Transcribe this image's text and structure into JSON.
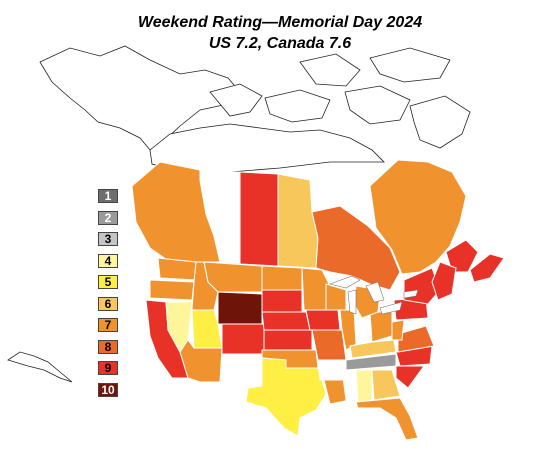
{
  "title": "Weekend Rating—Memorial Day 2024",
  "subtitle": "US 7.2, Canada 7.6",
  "legend": [
    {
      "label": "1",
      "color": "#6e6e6e"
    },
    {
      "label": "2",
      "color": "#9a9a9a"
    },
    {
      "label": "3",
      "color": "#c4c4c4"
    },
    {
      "label": "4",
      "color": "#fff59a"
    },
    {
      "label": "5",
      "color": "#ffee44"
    },
    {
      "label": "6",
      "color": "#f8c75c"
    },
    {
      "label": "7",
      "color": "#f0932e"
    },
    {
      "label": "8",
      "color": "#ea6a2a"
    },
    {
      "label": "9",
      "color": "#e83228"
    },
    {
      "label": "10",
      "color": "#6e1408"
    }
  ],
  "regions": [
    {
      "name": "British Columbia",
      "rating": 7
    },
    {
      "name": "Alberta",
      "rating": 0
    },
    {
      "name": "Saskatchewan",
      "rating": 9
    },
    {
      "name": "Manitoba",
      "rating": 6
    },
    {
      "name": "Ontario",
      "rating": 8
    },
    {
      "name": "Quebec",
      "rating": 7
    },
    {
      "name": "New Brunswick",
      "rating": 9
    },
    {
      "name": "Nova Scotia",
      "rating": 9
    },
    {
      "name": "Washington",
      "rating": 7
    },
    {
      "name": "Oregon",
      "rating": 7
    },
    {
      "name": "California",
      "rating": 9
    },
    {
      "name": "Nevada",
      "rating": 4
    },
    {
      "name": "Idaho",
      "rating": 7
    },
    {
      "name": "Montana",
      "rating": 7
    },
    {
      "name": "Wyoming",
      "rating": 10
    },
    {
      "name": "Utah",
      "rating": 5
    },
    {
      "name": "Arizona",
      "rating": 7
    },
    {
      "name": "Colorado",
      "rating": 9
    },
    {
      "name": "New Mexico",
      "rating": 0
    },
    {
      "name": "North Dakota",
      "rating": 7
    },
    {
      "name": "South Dakota",
      "rating": 9
    },
    {
      "name": "Nebraska",
      "rating": 9
    },
    {
      "name": "Kansas",
      "rating": 9
    },
    {
      "name": "Oklahoma",
      "rating": 7
    },
    {
      "name": "Texas",
      "rating": 5
    },
    {
      "name": "Minnesota",
      "rating": 7
    },
    {
      "name": "Iowa",
      "rating": 9
    },
    {
      "name": "Missouri",
      "rating": 8
    },
    {
      "name": "Arkansas",
      "rating": 0
    },
    {
      "name": "Louisiana",
      "rating": 7
    },
    {
      "name": "Wisconsin",
      "rating": 7
    },
    {
      "name": "Illinois",
      "rating": 7
    },
    {
      "name": "Indiana",
      "rating": 0
    },
    {
      "name": "Ohio",
      "rating": 7
    },
    {
      "name": "Michigan",
      "rating": 7
    },
    {
      "name": "Kentucky",
      "rating": 6
    },
    {
      "name": "Tennessee",
      "rating": 2
    },
    {
      "name": "Mississippi",
      "rating": 0
    },
    {
      "name": "Alabama",
      "rating": 4
    },
    {
      "name": "Georgia",
      "rating": 6
    },
    {
      "name": "Florida",
      "rating": 7
    },
    {
      "name": "North Carolina",
      "rating": 9
    },
    {
      "name": "South Carolina",
      "rating": 9
    },
    {
      "name": "Virginia",
      "rating": 8
    },
    {
      "name": "West Virginia",
      "rating": 7
    },
    {
      "name": "Pennsylvania",
      "rating": 9
    },
    {
      "name": "New York",
      "rating": 9
    },
    {
      "name": "New England",
      "rating": 9
    }
  ]
}
